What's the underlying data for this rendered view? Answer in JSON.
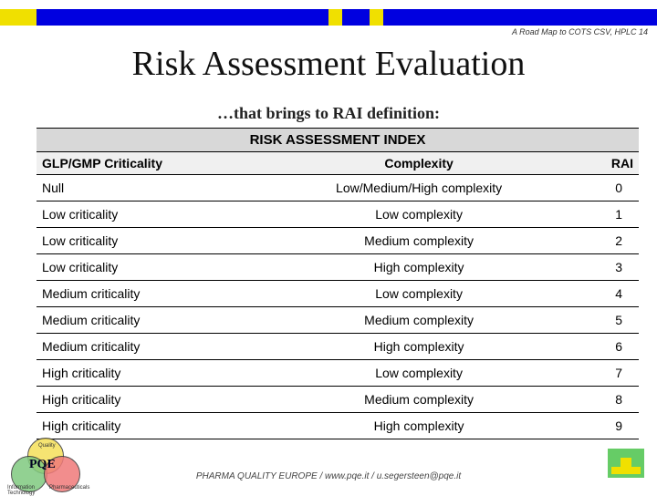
{
  "header_right": "A Road Map to COTS CSV, HPLC  14",
  "title": "Risk Assessment Evaluation",
  "subtitle": "…that brings to RAI definition:",
  "table": {
    "title": "RISK ASSESSMENT INDEX",
    "columns": [
      "GLP/GMP Criticality",
      "Complexity",
      "RAI"
    ],
    "rows": [
      [
        "Null",
        "Low/Medium/High complexity",
        "0"
      ],
      [
        "Low criticality",
        "Low complexity",
        "1"
      ],
      [
        "Low criticality",
        "Medium complexity",
        "2"
      ],
      [
        "Low criticality",
        "High complexity",
        "3"
      ],
      [
        "Medium criticality",
        "Low complexity",
        "4"
      ],
      [
        "Medium criticality",
        "Medium complexity",
        "5"
      ],
      [
        "Medium criticality",
        "High complexity",
        "6"
      ],
      [
        "High criticality",
        "Low complexity",
        "7"
      ],
      [
        "High criticality",
        "Medium complexity",
        "8"
      ],
      [
        "High criticality",
        "High complexity",
        "9"
      ]
    ],
    "header_bg": "#d8d8d8",
    "colhead_bg": "#f0f0f0",
    "border_color": "#000000",
    "font_size_body": 14
  },
  "footer": "PHARMA QUALITY EUROPE / www.pqe.it / u.segersteen@pqe.it",
  "logo": {
    "label": "PQE",
    "ring_labels": [
      "Quality",
      "Information\nTechnology",
      "Pharmaceuticals"
    ],
    "colors": {
      "top": "#f5e05a",
      "left": "#7fc97f",
      "right": "#f07a7a"
    }
  },
  "topbar_colors": {
    "yellow": "#f0e000",
    "blue": "#0000e0"
  },
  "corner_icon_color": "#f0e000",
  "corner_bg": "#66cc66"
}
